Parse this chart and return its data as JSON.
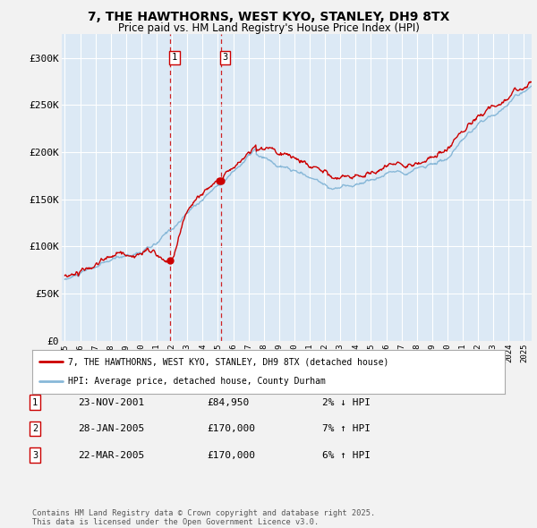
{
  "title": "7, THE HAWTHORNS, WEST KYO, STANLEY, DH9 8TX",
  "subtitle": "Price paid vs. HM Land Registry's House Price Index (HPI)",
  "background_color": "#f0f4f8",
  "plot_bg_color": "#dce9f5",
  "line_color_red": "#cc0000",
  "line_color_blue": "#88b8d8",
  "grid_color": "#ffffff",
  "transactions": [
    {
      "date": 2001.9,
      "price": 84950,
      "label": "1"
    },
    {
      "date": 2005.07,
      "price": 170000,
      "label": "2"
    },
    {
      "date": 2005.22,
      "price": 170000,
      "label": "3"
    }
  ],
  "vline_times": [
    2001.9,
    2005.22
  ],
  "vline_labels": [
    "1",
    "3"
  ],
  "legend_entries": [
    "7, THE HAWTHORNS, WEST KYO, STANLEY, DH9 8TX (detached house)",
    "HPI: Average price, detached house, County Durham"
  ],
  "table_entries": [
    {
      "num": "1",
      "date": "23-NOV-2001",
      "price": "£84,950",
      "change": "2% ↓ HPI"
    },
    {
      "num": "2",
      "date": "28-JAN-2005",
      "price": "£170,000",
      "change": "7% ↑ HPI"
    },
    {
      "num": "3",
      "date": "22-MAR-2005",
      "price": "£170,000",
      "change": "6% ↑ HPI"
    }
  ],
  "footnote": "Contains HM Land Registry data © Crown copyright and database right 2025.\nThis data is licensed under the Open Government Licence v3.0.",
  "ylim": [
    0,
    325000
  ],
  "xlim_start": 1994.8,
  "xlim_end": 2025.5,
  "yticks": [
    0,
    50000,
    100000,
    150000,
    200000,
    250000,
    300000
  ],
  "ytick_labels": [
    "£0",
    "£50K",
    "£100K",
    "£150K",
    "£200K",
    "£250K",
    "£300K"
  ],
  "xtick_years": [
    1995,
    1996,
    1997,
    1998,
    1999,
    2000,
    2001,
    2002,
    2003,
    2004,
    2005,
    2006,
    2007,
    2008,
    2009,
    2010,
    2011,
    2012,
    2013,
    2014,
    2015,
    2016,
    2017,
    2018,
    2019,
    2020,
    2021,
    2022,
    2023,
    2024,
    2025
  ]
}
